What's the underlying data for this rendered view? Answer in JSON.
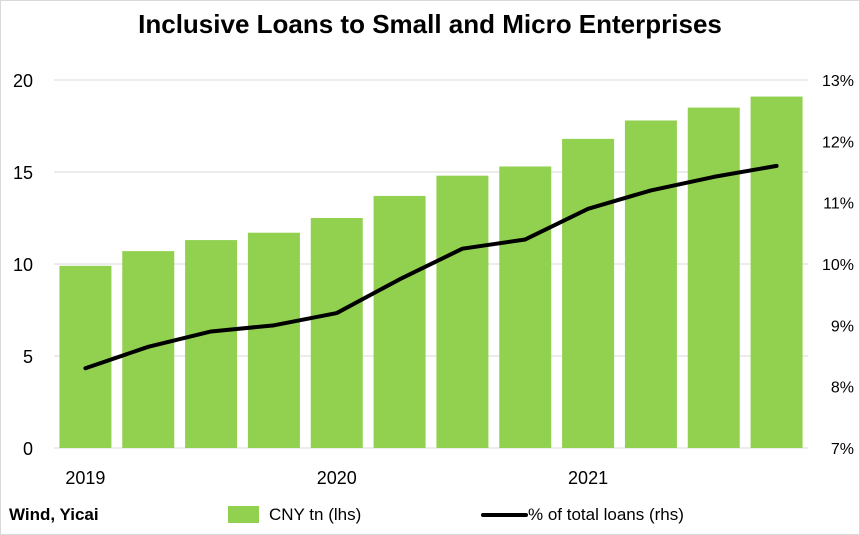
{
  "title": "Inclusive Loans to Small and Micro Enterprises",
  "source": "Wind, Yicai",
  "colors": {
    "bar": "#92d050",
    "line": "#000000",
    "grid": "#d9d9d9"
  },
  "chart_data": {
    "type": "bar",
    "title": "Inclusive Loans to Small and Micro Enterprises",
    "xlabel": "",
    "ylabel": "",
    "x_tick_labels": [
      "2019",
      "2020",
      "2021"
    ],
    "x_tick_positions": [
      0,
      4,
      8
    ],
    "ylim": [
      0,
      20
    ],
    "y_ticks": [
      "0",
      "5",
      "10",
      "15",
      "20"
    ],
    "y2lim": [
      7,
      13
    ],
    "y2_ticks": [
      "7%",
      "8%",
      "9%",
      "10%",
      "11%",
      "12%",
      "13%"
    ],
    "grid": true,
    "legend_position": "bottom",
    "series": [
      {
        "name": "CNY tn (lhs)",
        "type": "bar",
        "axis": "left",
        "values": [
          9.9,
          10.7,
          11.3,
          11.7,
          12.5,
          13.7,
          14.8,
          15.3,
          16.8,
          17.8,
          18.5,
          19.1
        ]
      },
      {
        "name": "% of total loans (rhs)",
        "type": "line",
        "axis": "right",
        "values": [
          8.3,
          8.65,
          8.9,
          9.0,
          9.2,
          9.75,
          10.25,
          10.4,
          10.9,
          11.2,
          11.42,
          11.6
        ]
      }
    ]
  }
}
